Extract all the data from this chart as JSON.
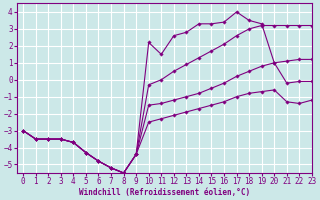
{
  "bg_color": "#cce8e8",
  "line_color": "#800080",
  "grid_color": "#ffffff",
  "xlabel": "Windchill (Refroidissement éolien,°C)",
  "xlim": [
    -0.5,
    23
  ],
  "ylim": [
    -5.5,
    4.5
  ],
  "yticks": [
    -5,
    -4,
    -3,
    -2,
    -1,
    0,
    1,
    2,
    3,
    4
  ],
  "xticks": [
    0,
    1,
    2,
    3,
    4,
    5,
    6,
    7,
    8,
    9,
    10,
    11,
    12,
    13,
    14,
    15,
    16,
    17,
    18,
    19,
    20,
    21,
    22,
    23
  ],
  "lines": [
    {
      "x": [
        0,
        1,
        2,
        3,
        4,
        5,
        6,
        7,
        8,
        9,
        10,
        11,
        12,
        13,
        14,
        15,
        16,
        17,
        18,
        19,
        20,
        21,
        22,
        23
      ],
      "y": [
        -3.0,
        -3.5,
        -3.5,
        -3.5,
        -3.7,
        -4.3,
        -4.8,
        -5.2,
        -5.5,
        -4.4,
        2.2,
        1.5,
        2.6,
        2.8,
        3.3,
        3.3,
        3.4,
        4.0,
        3.5,
        3.3,
        1.0,
        -0.2,
        -0.1,
        -0.1
      ]
    },
    {
      "x": [
        0,
        1,
        2,
        3,
        4,
        5,
        6,
        7,
        8,
        9,
        10,
        11,
        12,
        13,
        14,
        15,
        16,
        17,
        18,
        19,
        20,
        21,
        22,
        23
      ],
      "y": [
        -3.0,
        -3.5,
        -3.5,
        -3.5,
        -3.7,
        -4.3,
        -4.8,
        -5.2,
        -5.5,
        -4.4,
        -0.3,
        0.0,
        0.5,
        0.9,
        1.3,
        1.7,
        2.1,
        2.6,
        3.0,
        3.2,
        3.2,
        3.2,
        3.2,
        3.2
      ]
    },
    {
      "x": [
        0,
        1,
        2,
        3,
        4,
        5,
        6,
        7,
        8,
        9,
        10,
        11,
        12,
        13,
        14,
        15,
        16,
        17,
        18,
        19,
        20,
        21,
        22,
        23
      ],
      "y": [
        -3.0,
        -3.5,
        -3.5,
        -3.5,
        -3.7,
        -4.3,
        -4.8,
        -5.2,
        -5.5,
        -4.4,
        -1.5,
        -1.4,
        -1.2,
        -1.0,
        -0.8,
        -0.5,
        -0.2,
        0.2,
        0.5,
        0.8,
        1.0,
        1.1,
        1.2,
        1.2
      ]
    },
    {
      "x": [
        0,
        1,
        2,
        3,
        4,
        5,
        6,
        7,
        8,
        9,
        10,
        11,
        12,
        13,
        14,
        15,
        16,
        17,
        18,
        19,
        20,
        21,
        22,
        23
      ],
      "y": [
        -3.0,
        -3.5,
        -3.5,
        -3.5,
        -3.7,
        -4.3,
        -4.8,
        -5.2,
        -5.5,
        -4.4,
        -2.5,
        -2.3,
        -2.1,
        -1.9,
        -1.7,
        -1.5,
        -1.3,
        -1.0,
        -0.8,
        -0.7,
        -0.6,
        -1.3,
        -1.4,
        -1.2
      ]
    }
  ]
}
